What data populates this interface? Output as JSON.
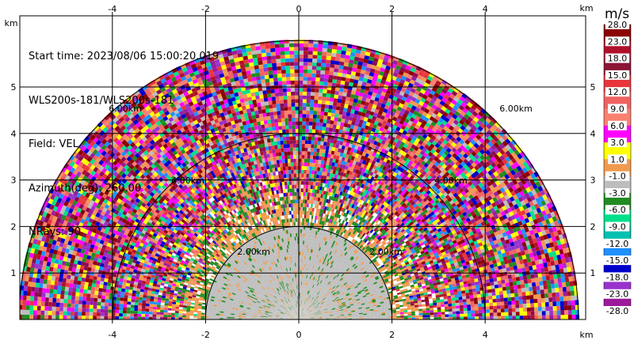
{
  "info": {
    "start_time": "Start time: 2023/08/06 15:00:20.019",
    "station": "WLS200s-181/WLS200s-181",
    "field": "Field: VEL",
    "azimuth": "Azimuth(deg): 260.00",
    "nrays": "NRays: 90"
  },
  "colorbar": {
    "unit": "m/s",
    "labels": [
      "28.0",
      "23.0",
      "18.0",
      "15.0",
      "12.0",
      "9.0",
      "6.0",
      "3.0",
      "1.0",
      "-1.0",
      "-3.0",
      "-6.0",
      "-9.0",
      "-12.0",
      "-15.0",
      "-18.0",
      "-23.0",
      "-28.0"
    ],
    "colors": [
      "#8b0000",
      "#b0102a",
      "#8b1535",
      "#e8353b",
      "#f06262",
      "#fa8070",
      "#ff00ff",
      "#ffff00",
      "#f09a4e",
      "#bdbdbd",
      "#228b22",
      "#00e08a",
      "#00c0b0",
      "#1e90ff",
      "#0000cd",
      "#9932cc",
      "#9b1b9b",
      "#8b0a50"
    ]
  },
  "chart_data": {
    "type": "heatmap",
    "title": "",
    "xlabel": "km",
    "ylabel": "km",
    "xlim": [
      -5.95,
      6.1
    ],
    "ylim": [
      0,
      5.95
    ],
    "xticks": [
      -4,
      -2,
      0,
      2,
      4
    ],
    "yticks": [
      1,
      2,
      3,
      4,
      5
    ],
    "range_rings_km": [
      2,
      4,
      6
    ],
    "range_ring_labels": [
      "2.00km",
      "4.00km",
      "6.00km"
    ],
    "grid": true,
    "azimuth_deg": 260.0,
    "nrays": 90,
    "field": "VEL"
  }
}
